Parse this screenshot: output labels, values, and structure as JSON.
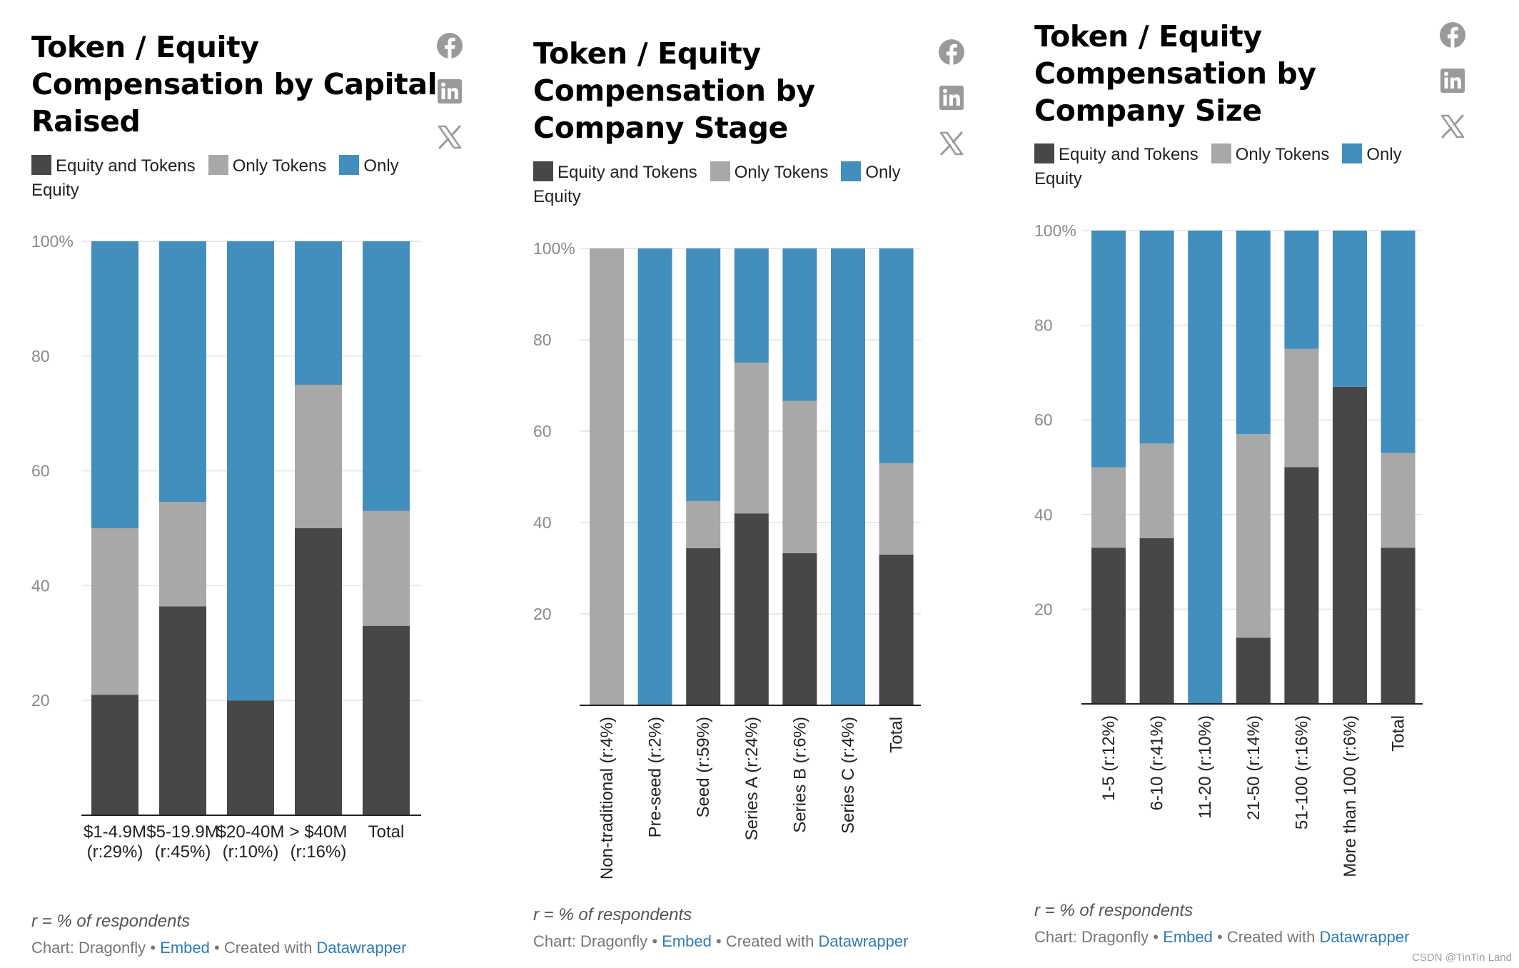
{
  "colors": {
    "equity_and_tokens": "#474747",
    "only_tokens": "#a8a8a8",
    "only_equity": "#428fbd",
    "grid": "#e4e4e4",
    "link": "#2e7bb8"
  },
  "legend": {
    "equity_and_tokens": "Equity and Tokens",
    "only_tokens": "Only Tokens",
    "only_equity": "Only Equity"
  },
  "footnote": "r = % of respondents",
  "credit": {
    "chart_label": "Chart: Dragonfly",
    "embed": "Embed",
    "created_with": "Created with",
    "tool": "Datawrapper",
    "separator": "•"
  },
  "share_icons": [
    "facebook-icon",
    "linkedin-icon",
    "x-icon"
  ],
  "watermark": "CSDN @TinTin Land",
  "chart_data": [
    {
      "type": "bar",
      "stacked": true,
      "title": "Token / Equity Compensation by Capital Raised",
      "categories": [
        "$1-4.9M (r:29%)",
        "$5-19.9M (r:45%)",
        "$20-40M (r:10%)",
        "> $40M (r:16%)",
        "Total"
      ],
      "series": [
        {
          "name": "Equity and Tokens",
          "values": [
            21,
            36.4,
            20,
            50,
            33
          ]
        },
        {
          "name": "Only Tokens",
          "values": [
            29,
            18.2,
            0,
            25,
            20
          ]
        },
        {
          "name": "Only Equity",
          "values": [
            50,
            45.4,
            80,
            25,
            47
          ]
        }
      ],
      "yticks": [
        "20",
        "40",
        "60",
        "80",
        "100%"
      ],
      "ylim": [
        0,
        100
      ],
      "xlabel": "",
      "ylabel": "",
      "label_orientation": "horizontal",
      "grid": true,
      "legend_position": "top"
    },
    {
      "type": "bar",
      "stacked": true,
      "title": "Token / Equity Compensation by Company Stage",
      "categories": [
        "Non-traditional (r:4%)",
        "Pre-seed (r:2%)",
        "Seed (r:59%)",
        "Series A (r:24%)",
        "Series B (r:6%)",
        "Series C (r:4%)",
        "Total"
      ],
      "series": [
        {
          "name": "Equity and Tokens",
          "values": [
            0,
            0,
            34.4,
            42,
            33.3,
            0,
            33
          ]
        },
        {
          "name": "Only Tokens",
          "values": [
            100,
            0,
            10.3,
            33,
            33.3,
            0,
            20
          ]
        },
        {
          "name": "Only Equity",
          "values": [
            0,
            100,
            55.3,
            25,
            33.4,
            100,
            47
          ]
        }
      ],
      "yticks": [
        "20",
        "40",
        "60",
        "80",
        "100%"
      ],
      "ylim": [
        0,
        100
      ],
      "xlabel": "",
      "ylabel": "",
      "label_orientation": "vertical",
      "grid": true,
      "legend_position": "top"
    },
    {
      "type": "bar",
      "stacked": true,
      "title": "Token / Equity Compensation by Company Size",
      "categories": [
        "1-5 (r:12%)",
        "6-10 (r:41%)",
        "11-20 (r:10%)",
        "21-50 (r:14%)",
        "51-100 (r:16%)",
        "More than 100 (r:6%)",
        "Total"
      ],
      "series": [
        {
          "name": "Equity and Tokens",
          "values": [
            33,
            35,
            0,
            14,
            50,
            67,
            33
          ]
        },
        {
          "name": "Only Tokens",
          "values": [
            17,
            20,
            0,
            43,
            25,
            0,
            20
          ]
        },
        {
          "name": "Only Equity",
          "values": [
            50,
            45,
            100,
            43,
            25,
            33,
            47
          ]
        }
      ],
      "yticks": [
        "20",
        "40",
        "60",
        "80",
        "100%"
      ],
      "ylim": [
        0,
        100
      ],
      "xlabel": "",
      "ylabel": "",
      "label_orientation": "vertical",
      "grid": true,
      "legend_position": "top"
    }
  ]
}
